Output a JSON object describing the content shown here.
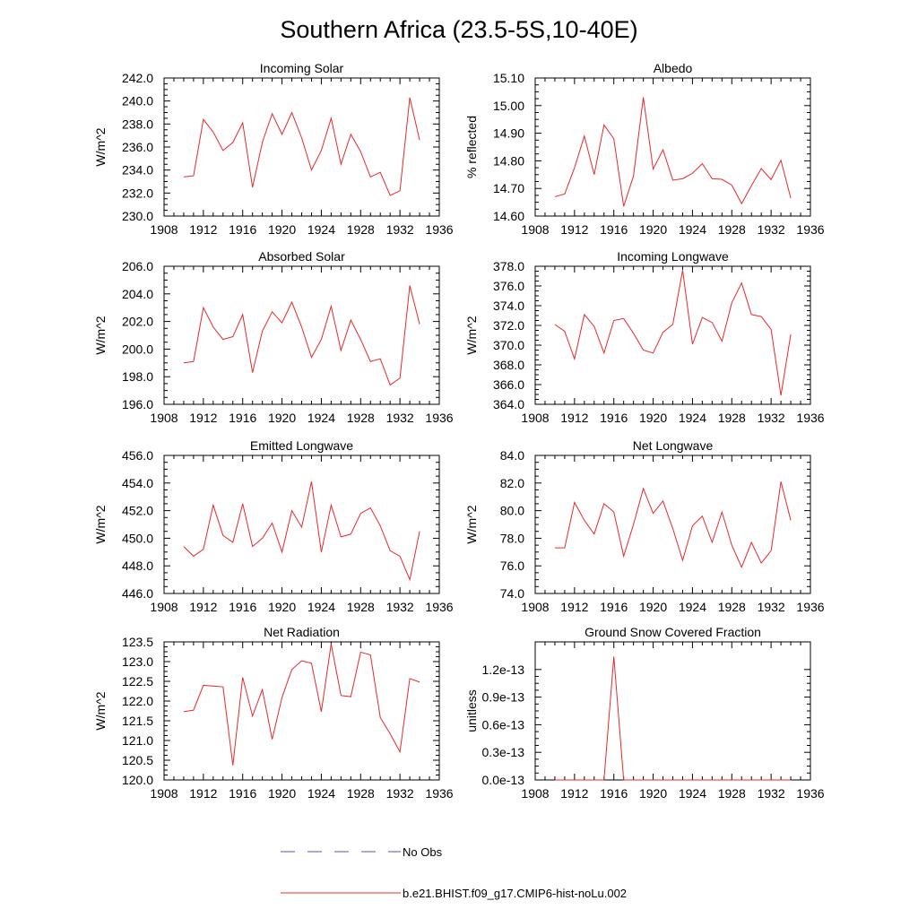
{
  "figure": {
    "title": "Southern Africa (23.5-5S,10-40E)"
  },
  "legend": {
    "items": [
      {
        "label": "No Obs",
        "color": "#5555aa",
        "style": "dashed"
      },
      {
        "label": "b.e21.BHIST.f09_g17.CMIP6-hist-noLu.002",
        "color": "#e8282a",
        "style": "solid"
      }
    ]
  },
  "colors": {
    "series": "#e8282a",
    "axis": "#000000"
  },
  "chart_data": [
    {
      "type": "line",
      "title": "Incoming Solar",
      "ylabel": "W/m^2",
      "xlim": [
        1908,
        1936
      ],
      "ylim": [
        230,
        242
      ],
      "x_ticks": [
        "1908",
        "1912",
        "1916",
        "1920",
        "1924",
        "1928",
        "1932",
        "1936"
      ],
      "y_ticks": [
        "230.0",
        "232.0",
        "234.0",
        "236.0",
        "238.0",
        "240.0",
        "242.0"
      ],
      "x": [
        1910,
        1911,
        1912,
        1913,
        1914,
        1915,
        1916,
        1917,
        1918,
        1919,
        1920,
        1921,
        1922,
        1923,
        1924,
        1925,
        1926,
        1927,
        1928,
        1929,
        1930,
        1931,
        1932,
        1933,
        1934
      ],
      "series": [
        {
          "name": "b.e21.BHIST.f09_g17.CMIP6-hist-noLu.002",
          "values": [
            233.4,
            233.5,
            238.4,
            237.3,
            235.7,
            236.4,
            238.1,
            232.5,
            236.4,
            238.9,
            237.1,
            239.0,
            236.8,
            234.0,
            235.7,
            238.5,
            234.5,
            237.1,
            235.6,
            233.4,
            233.8,
            231.8,
            232.2,
            240.3,
            236.6
          ]
        }
      ]
    },
    {
      "type": "line",
      "title": "Albedo",
      "ylabel": "% reflected",
      "xlim": [
        1908,
        1936
      ],
      "ylim": [
        14.6,
        15.1
      ],
      "x_ticks": [
        "1908",
        "1912",
        "1916",
        "1920",
        "1924",
        "1928",
        "1932",
        "1936"
      ],
      "y_ticks": [
        "14.60",
        "14.70",
        "14.80",
        "14.90",
        "15.00",
        "15.10"
      ],
      "x": [
        1910,
        1911,
        1912,
        1913,
        1914,
        1915,
        1916,
        1917,
        1918,
        1919,
        1920,
        1921,
        1922,
        1923,
        1924,
        1925,
        1926,
        1927,
        1928,
        1929,
        1930,
        1931,
        1932,
        1933,
        1934
      ],
      "series": [
        {
          "name": "b.e21.BHIST.f09_g17.CMIP6-hist-noLu.002",
          "values": [
            14.67,
            14.68,
            14.775,
            14.89,
            14.75,
            14.93,
            14.88,
            14.635,
            14.745,
            15.03,
            14.77,
            14.84,
            14.73,
            14.735,
            14.755,
            14.79,
            14.735,
            14.733,
            14.712,
            14.645,
            14.71,
            14.772,
            14.732,
            14.802,
            14.665
          ]
        }
      ]
    },
    {
      "type": "line",
      "title": "Absorbed Solar",
      "ylabel": "W/m^2",
      "xlim": [
        1908,
        1936
      ],
      "ylim": [
        196,
        206
      ],
      "x_ticks": [
        "1908",
        "1912",
        "1916",
        "1920",
        "1924",
        "1928",
        "1932",
        "1936"
      ],
      "y_ticks": [
        "196.0",
        "198.0",
        "200.0",
        "202.0",
        "204.0",
        "206.0"
      ],
      "x": [
        1910,
        1911,
        1912,
        1913,
        1914,
        1915,
        1916,
        1917,
        1918,
        1919,
        1920,
        1921,
        1922,
        1923,
        1924,
        1925,
        1926,
        1927,
        1928,
        1929,
        1930,
        1931,
        1932,
        1933,
        1934
      ],
      "series": [
        {
          "name": "b.e21.BHIST.f09_g17.CMIP6-hist-noLu.002",
          "values": [
            199.0,
            199.1,
            203.0,
            201.6,
            200.7,
            200.9,
            202.5,
            198.3,
            201.3,
            202.7,
            201.9,
            203.4,
            201.6,
            199.4,
            200.7,
            203.1,
            199.9,
            202.1,
            200.7,
            199.1,
            199.3,
            197.4,
            197.9,
            204.6,
            201.8
          ]
        }
      ]
    },
    {
      "type": "line",
      "title": "Incoming Longwave",
      "ylabel": "W/m^2",
      "xlim": [
        1908,
        1936
      ],
      "ylim": [
        364,
        378
      ],
      "x_ticks": [
        "1908",
        "1912",
        "1916",
        "1920",
        "1924",
        "1928",
        "1932",
        "1936"
      ],
      "y_ticks": [
        "364.0",
        "366.0",
        "368.0",
        "370.0",
        "372.0",
        "374.0",
        "376.0",
        "378.0"
      ],
      "x": [
        1910,
        1911,
        1912,
        1913,
        1914,
        1915,
        1916,
        1917,
        1918,
        1919,
        1920,
        1921,
        1922,
        1923,
        1924,
        1925,
        1926,
        1927,
        1928,
        1929,
        1930,
        1931,
        1932,
        1933,
        1934
      ],
      "series": [
        {
          "name": "b.e21.BHIST.f09_g17.CMIP6-hist-noLu.002",
          "values": [
            372.1,
            371.4,
            368.6,
            373.1,
            371.9,
            369.2,
            372.5,
            372.7,
            371.2,
            369.5,
            369.2,
            371.3,
            372.1,
            377.6,
            370.1,
            372.8,
            372.3,
            370.4,
            374.3,
            376.3,
            373.1,
            372.9,
            371.6,
            364.9,
            371.1
          ]
        }
      ]
    },
    {
      "type": "line",
      "title": "Emitted Longwave",
      "ylabel": "W/m^2",
      "xlim": [
        1908,
        1936
      ],
      "ylim": [
        446,
        456
      ],
      "x_ticks": [
        "1908",
        "1912",
        "1916",
        "1920",
        "1924",
        "1928",
        "1932",
        "1936"
      ],
      "y_ticks": [
        "446.0",
        "448.0",
        "450.0",
        "452.0",
        "454.0",
        "456.0"
      ],
      "x": [
        1910,
        1911,
        1912,
        1913,
        1914,
        1915,
        1916,
        1917,
        1918,
        1919,
        1920,
        1921,
        1922,
        1923,
        1924,
        1925,
        1926,
        1927,
        1928,
        1929,
        1930,
        1931,
        1932,
        1933,
        1934
      ],
      "series": [
        {
          "name": "b.e21.BHIST.f09_g17.CMIP6-hist-noLu.002",
          "values": [
            449.4,
            448.7,
            449.2,
            452.4,
            450.2,
            449.7,
            452.5,
            449.4,
            450.0,
            451.1,
            449.0,
            452.0,
            450.8,
            454.1,
            449.0,
            452.4,
            450.1,
            450.3,
            451.8,
            452.2,
            450.9,
            449.1,
            448.7,
            447.0,
            450.5
          ]
        }
      ]
    },
    {
      "type": "line",
      "title": "Net Longwave",
      "ylabel": "W/m^2",
      "xlim": [
        1908,
        1936
      ],
      "ylim": [
        74,
        84
      ],
      "x_ticks": [
        "1908",
        "1912",
        "1916",
        "1920",
        "1924",
        "1928",
        "1932",
        "1936"
      ],
      "y_ticks": [
        "74.0",
        "76.0",
        "78.0",
        "80.0",
        "82.0",
        "84.0"
      ],
      "x": [
        1910,
        1911,
        1912,
        1913,
        1914,
        1915,
        1916,
        1917,
        1918,
        1919,
        1920,
        1921,
        1922,
        1923,
        1924,
        1925,
        1926,
        1927,
        1928,
        1929,
        1930,
        1931,
        1932,
        1933,
        1934
      ],
      "series": [
        {
          "name": "b.e21.BHIST.f09_g17.CMIP6-hist-noLu.002",
          "values": [
            77.3,
            77.3,
            80.6,
            79.3,
            78.3,
            80.5,
            79.9,
            76.7,
            79.0,
            81.6,
            79.8,
            80.7,
            78.7,
            76.4,
            78.9,
            79.6,
            77.7,
            79.9,
            77.5,
            75.9,
            77.7,
            76.2,
            77.1,
            82.1,
            79.3
          ]
        }
      ]
    },
    {
      "type": "line",
      "title": "Net Radiation",
      "ylabel": "W/m^2",
      "xlim": [
        1908,
        1936
      ],
      "ylim": [
        120,
        123.5
      ],
      "x_ticks": [
        "1908",
        "1912",
        "1916",
        "1920",
        "1924",
        "1928",
        "1932",
        "1936"
      ],
      "y_ticks": [
        "120.0",
        "120.5",
        "121.0",
        "121.5",
        "122.0",
        "122.5",
        "123.0",
        "123.5"
      ],
      "x": [
        1910,
        1911,
        1912,
        1913,
        1914,
        1915,
        1916,
        1917,
        1918,
        1919,
        1920,
        1921,
        1922,
        1923,
        1924,
        1925,
        1926,
        1927,
        1928,
        1929,
        1930,
        1931,
        1932,
        1933,
        1934
      ],
      "series": [
        {
          "name": "b.e21.BHIST.f09_g17.CMIP6-hist-noLu.002",
          "values": [
            121.73,
            121.77,
            122.4,
            122.38,
            122.36,
            120.37,
            122.6,
            121.62,
            122.29,
            121.03,
            122.09,
            122.8,
            123.02,
            122.96,
            121.73,
            123.45,
            122.14,
            122.11,
            123.24,
            123.17,
            121.58,
            121.17,
            120.71,
            122.57,
            122.48
          ]
        }
      ]
    },
    {
      "type": "line",
      "title": "Ground Snow Covered Fraction",
      "ylabel": "unitless",
      "xlim": [
        1908,
        1936
      ],
      "ylim": [
        0,
        1.5
      ],
      "y_unit_exponent": -13,
      "x_ticks": [
        "1908",
        "1912",
        "1916",
        "1920",
        "1924",
        "1928",
        "1932",
        "1936"
      ],
      "y_ticks": [
        "0.0e-13",
        "0.3e-13",
        "0.6e-13",
        "0.9e-13",
        "1.2e-13"
      ],
      "y_tick_values": [
        0,
        0.3,
        0.6,
        0.9,
        1.2
      ],
      "x": [
        1910,
        1911,
        1912,
        1913,
        1914,
        1915,
        1916,
        1917,
        1918,
        1919,
        1920,
        1921,
        1922,
        1923,
        1924,
        1925,
        1926,
        1927,
        1928,
        1929,
        1930,
        1931,
        1932,
        1933,
        1934
      ],
      "series": [
        {
          "name": "b.e21.BHIST.f09_g17.CMIP6-hist-noLu.002",
          "values": [
            0,
            0,
            0,
            0,
            0,
            0,
            1.34,
            0,
            0,
            0,
            0,
            0,
            0,
            0,
            0,
            0,
            0,
            0,
            0,
            0,
            0,
            0,
            0,
            0,
            0
          ]
        }
      ]
    }
  ]
}
